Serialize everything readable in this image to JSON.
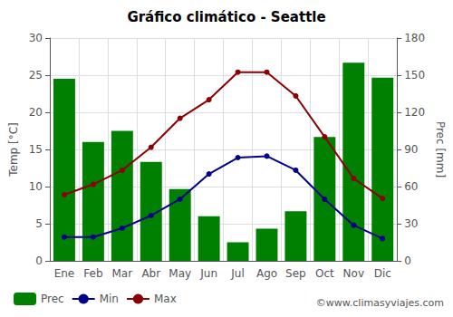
{
  "chart_data": {
    "type": "bar",
    "title": "Gráfico climático - Seattle",
    "categories": [
      "Ene",
      "Feb",
      "Mar",
      "Abr",
      "May",
      "Jun",
      "Jul",
      "Ago",
      "Sep",
      "Oct",
      "Nov",
      "Dic"
    ],
    "series": [
      {
        "name": "Prec",
        "type": "bar",
        "axis": "y2",
        "color": "#008000",
        "values": [
          147,
          96,
          105,
          80,
          58,
          36,
          15,
          26,
          40,
          100,
          160,
          148
        ]
      },
      {
        "name": "Min",
        "type": "line",
        "marker": "circle",
        "color": "#00008b",
        "values": [
          3.2,
          3.2,
          4.4,
          6.1,
          8.3,
          11.7,
          13.9,
          14.1,
          12.2,
          8.3,
          4.8,
          3.0
        ]
      },
      {
        "name": "Max",
        "type": "line",
        "marker": "circle",
        "color": "#8b0000",
        "values": [
          8.9,
          10.3,
          12.2,
          15.3,
          19.2,
          21.7,
          25.4,
          25.4,
          22.2,
          16.7,
          11.1,
          8.4
        ]
      }
    ],
    "ylabel": "Temp [°C]",
    "y2label": "Prec [mm]",
    "ylim": [
      0,
      30
    ],
    "yticks": [
      0,
      5,
      10,
      15,
      20,
      25,
      30
    ],
    "y2lim": [
      0,
      180
    ],
    "y2ticks": [
      0,
      30,
      60,
      90,
      120,
      150,
      180
    ],
    "grid": true,
    "legend": "bottom",
    "annotations": [
      "©www.climasyviajes.com"
    ]
  }
}
